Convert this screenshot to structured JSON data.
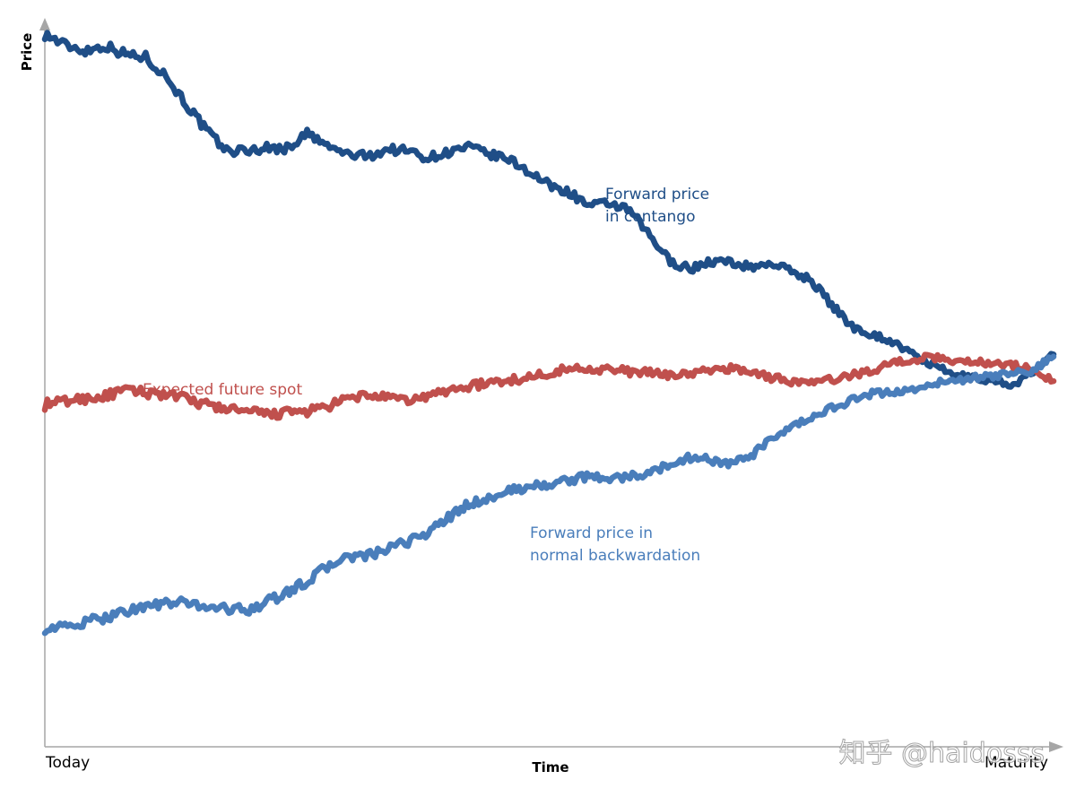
{
  "chart_data": {
    "type": "line",
    "title": "",
    "xlabel": "Time",
    "ylabel": "Price",
    "x_tick_labels": {
      "start": "Today",
      "end": "Maturity"
    },
    "xlim": [
      0,
      1
    ],
    "ylim": [
      0,
      100
    ],
    "grid": false,
    "series": [
      {
        "name": "Forward price in contango",
        "label_lines": [
          "Forward price",
          "in contango"
        ],
        "color": "#1f4e87",
        "x": [
          0,
          0.02,
          0.04,
          0.06,
          0.08,
          0.1,
          0.12,
          0.14,
          0.16,
          0.18,
          0.2,
          0.22,
          0.24,
          0.26,
          0.28,
          0.3,
          0.32,
          0.34,
          0.36,
          0.38,
          0.4,
          0.42,
          0.44,
          0.46,
          0.48,
          0.5,
          0.52,
          0.54,
          0.56,
          0.58,
          0.6,
          0.62,
          0.64,
          0.66,
          0.68,
          0.7,
          0.72,
          0.74,
          0.76,
          0.78,
          0.8,
          0.82,
          0.84,
          0.86,
          0.88,
          0.9,
          0.92,
          0.94,
          0.96,
          0.98,
          1.0
        ],
        "values": [
          99.0,
          97.5,
          96.7,
          97.4,
          96.2,
          95.8,
          93.2,
          89.3,
          85.6,
          82.8,
          82.8,
          83.2,
          83.1,
          85.2,
          83.4,
          82.3,
          82.0,
          83.0,
          82.8,
          81.8,
          82.6,
          83.3,
          82.3,
          81.6,
          79.9,
          78.0,
          77.0,
          75.1,
          75.5,
          74.4,
          70.9,
          67.4,
          66.4,
          67.4,
          67.3,
          66.6,
          67.2,
          66.1,
          64.8,
          61.4,
          58.4,
          57.3,
          56.3,
          54.5,
          53.0,
          51.7,
          51.2,
          50.8,
          50.3,
          52.0,
          54.5
        ]
      },
      {
        "name": "Expected future spot",
        "label_lines": [
          "Expected future spot"
        ],
        "color": "#c0504d",
        "x": [
          0,
          0.02,
          0.04,
          0.06,
          0.08,
          0.1,
          0.12,
          0.14,
          0.16,
          0.18,
          0.2,
          0.22,
          0.24,
          0.26,
          0.28,
          0.3,
          0.32,
          0.34,
          0.36,
          0.38,
          0.4,
          0.42,
          0.44,
          0.46,
          0.48,
          0.5,
          0.52,
          0.54,
          0.56,
          0.58,
          0.6,
          0.62,
          0.64,
          0.66,
          0.68,
          0.7,
          0.72,
          0.74,
          0.76,
          0.78,
          0.8,
          0.82,
          0.84,
          0.86,
          0.88,
          0.9,
          0.92,
          0.94,
          0.96,
          0.98,
          1.0
        ],
        "values": [
          47.5,
          48.0,
          48.4,
          48.7,
          49.5,
          49.2,
          49.0,
          48.3,
          47.5,
          47.0,
          46.5,
          46.2,
          46.4,
          46.6,
          47.2,
          48.3,
          48.9,
          48.4,
          48.1,
          48.7,
          49.5,
          50.1,
          50.5,
          50.9,
          51.3,
          52.0,
          52.5,
          52.6,
          52.4,
          52.1,
          51.9,
          51.7,
          51.8,
          52.3,
          52.6,
          52.1,
          51.3,
          50.8,
          50.5,
          51.0,
          51.6,
          52.3,
          53.3,
          53.8,
          54.1,
          53.7,
          53.5,
          53.3,
          53.0,
          52.4,
          50.8
        ]
      },
      {
        "name": "Forward price in normal backwardation",
        "label_lines": [
          "Forward price in",
          "normal backwardation"
        ],
        "color": "#4a7ebb",
        "x": [
          0,
          0.02,
          0.04,
          0.06,
          0.08,
          0.1,
          0.12,
          0.14,
          0.16,
          0.18,
          0.2,
          0.22,
          0.24,
          0.26,
          0.28,
          0.3,
          0.32,
          0.34,
          0.36,
          0.38,
          0.4,
          0.42,
          0.44,
          0.46,
          0.48,
          0.5,
          0.52,
          0.54,
          0.56,
          0.58,
          0.6,
          0.62,
          0.64,
          0.66,
          0.68,
          0.7,
          0.72,
          0.74,
          0.76,
          0.78,
          0.8,
          0.82,
          0.84,
          0.86,
          0.88,
          0.9,
          0.92,
          0.94,
          0.96,
          0.98,
          1.0
        ],
        "values": [
          16.5,
          16.6,
          17.2,
          18.0,
          18.9,
          19.5,
          19.9,
          20.0,
          19.5,
          19.2,
          19.0,
          20.1,
          21.4,
          23.0,
          25.0,
          26.4,
          26.5,
          27.4,
          28.5,
          29.8,
          31.8,
          33.7,
          34.5,
          35.5,
          36.1,
          36.5,
          37.0,
          37.6,
          37.3,
          37.5,
          38.0,
          39.3,
          40.2,
          39.9,
          39.2,
          40.4,
          42.6,
          44.3,
          45.7,
          47.1,
          48.1,
          49.0,
          49.3,
          49.6,
          50.4,
          50.8,
          51.2,
          51.5,
          51.8,
          52.3,
          54.2
        ]
      }
    ],
    "annotations": []
  },
  "watermark": {
    "text": "知乎 @haidosss"
  }
}
